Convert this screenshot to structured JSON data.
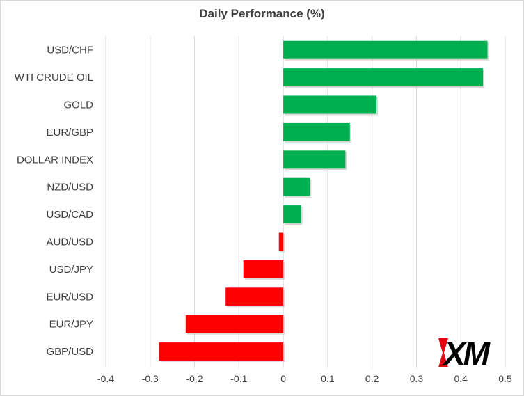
{
  "chart_data": {
    "type": "bar",
    "orientation": "horizontal",
    "title": "Daily Performance (%)",
    "xlabel": "",
    "ylabel": "",
    "categories": [
      "USD/CHF",
      "WTI CRUDE OIL",
      "GOLD",
      "EUR/GBP",
      "DOLLAR INDEX",
      "NZD/USD",
      "USD/CAD",
      "AUD/USD",
      "USD/JPY",
      "EUR/USD",
      "EUR/JPY",
      "GBP/USD"
    ],
    "values": [
      0.46,
      0.45,
      0.21,
      0.15,
      0.14,
      0.06,
      0.04,
      -0.01,
      -0.09,
      -0.13,
      -0.22,
      -0.28
    ],
    "xlim": [
      -0.4,
      0.5
    ],
    "xticks": [
      "-0.4",
      "-0.3",
      "-0.2",
      "-0.1",
      "0",
      "0.1",
      "0.2",
      "0.3",
      "0.4",
      "0.5"
    ],
    "grid": "vertical",
    "legend": "none",
    "colors": {
      "positive": "#00b050",
      "negative": "#ff0000",
      "grid": "#d9d9d9",
      "text": "#404040"
    }
  },
  "logo": {
    "text": "XM",
    "name": "xm-logo",
    "colors": {
      "red": "#e30613",
      "black": "#000000"
    }
  }
}
